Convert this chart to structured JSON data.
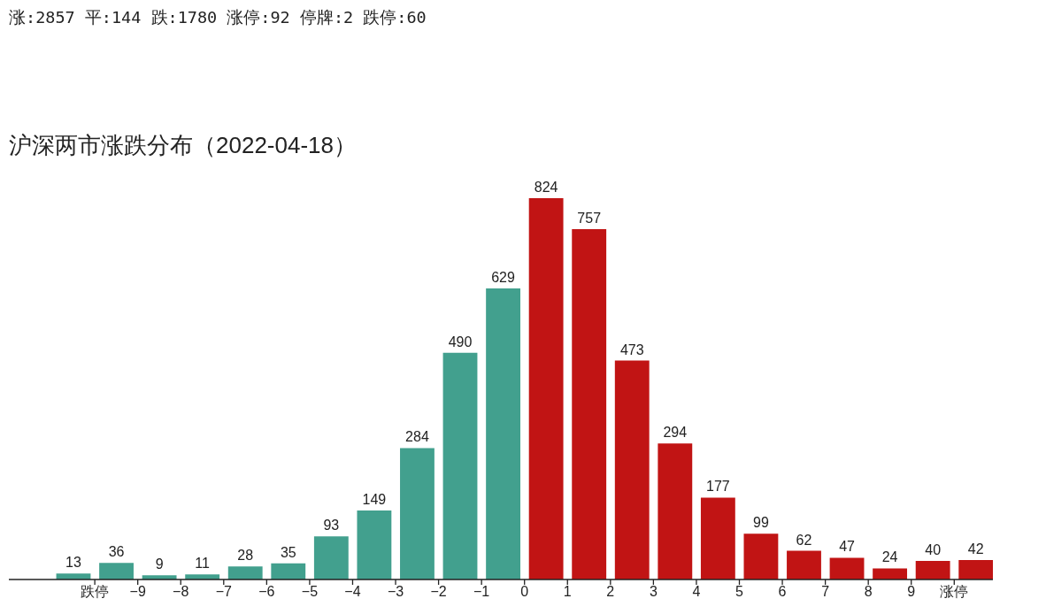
{
  "chart_data": {
    "type": "bar",
    "title": "沪深两市涨跌分布（2022-04-18）",
    "annotations": [
      "涨:2857 平:144 跌:1780 涨停:92 停牌:2 跌停:60"
    ],
    "x": [
      -10.5,
      -9.5,
      -8.5,
      -7.5,
      -6.5,
      -5.5,
      -4.5,
      -3.5,
      -2.5,
      -1.5,
      -0.5,
      0.5,
      1.5,
      2.5,
      3.5,
      4.5,
      5.5,
      6.5,
      7.5,
      8.5,
      9.5,
      10.5
    ],
    "values": [
      13,
      36,
      9,
      11,
      28,
      35,
      93,
      149,
      284,
      490,
      629,
      824,
      757,
      473,
      294,
      177,
      99,
      62,
      47,
      24,
      40,
      42
    ],
    "colors": [
      "#42a08e",
      "#42a08e",
      "#42a08e",
      "#42a08e",
      "#42a08e",
      "#42a08e",
      "#42a08e",
      "#42a08e",
      "#42a08e",
      "#42a08e",
      "#42a08e",
      "#c11414",
      "#c11414",
      "#c11414",
      "#c11414",
      "#c11414",
      "#c11414",
      "#c11414",
      "#c11414",
      "#c11414",
      "#c11414",
      "#c11414"
    ],
    "xlim": [
      -12,
      10.9
    ],
    "xticks": [
      {
        "value": -10,
        "label": "跌停"
      },
      -9,
      -8,
      -7,
      -6,
      -5,
      -4,
      -3,
      -2,
      -1,
      0,
      1,
      2,
      3,
      4,
      5,
      6,
      7,
      8,
      9,
      {
        "value": 10,
        "label": "涨停"
      }
    ],
    "data_labels": true,
    "tick_labels": "x"
  }
}
